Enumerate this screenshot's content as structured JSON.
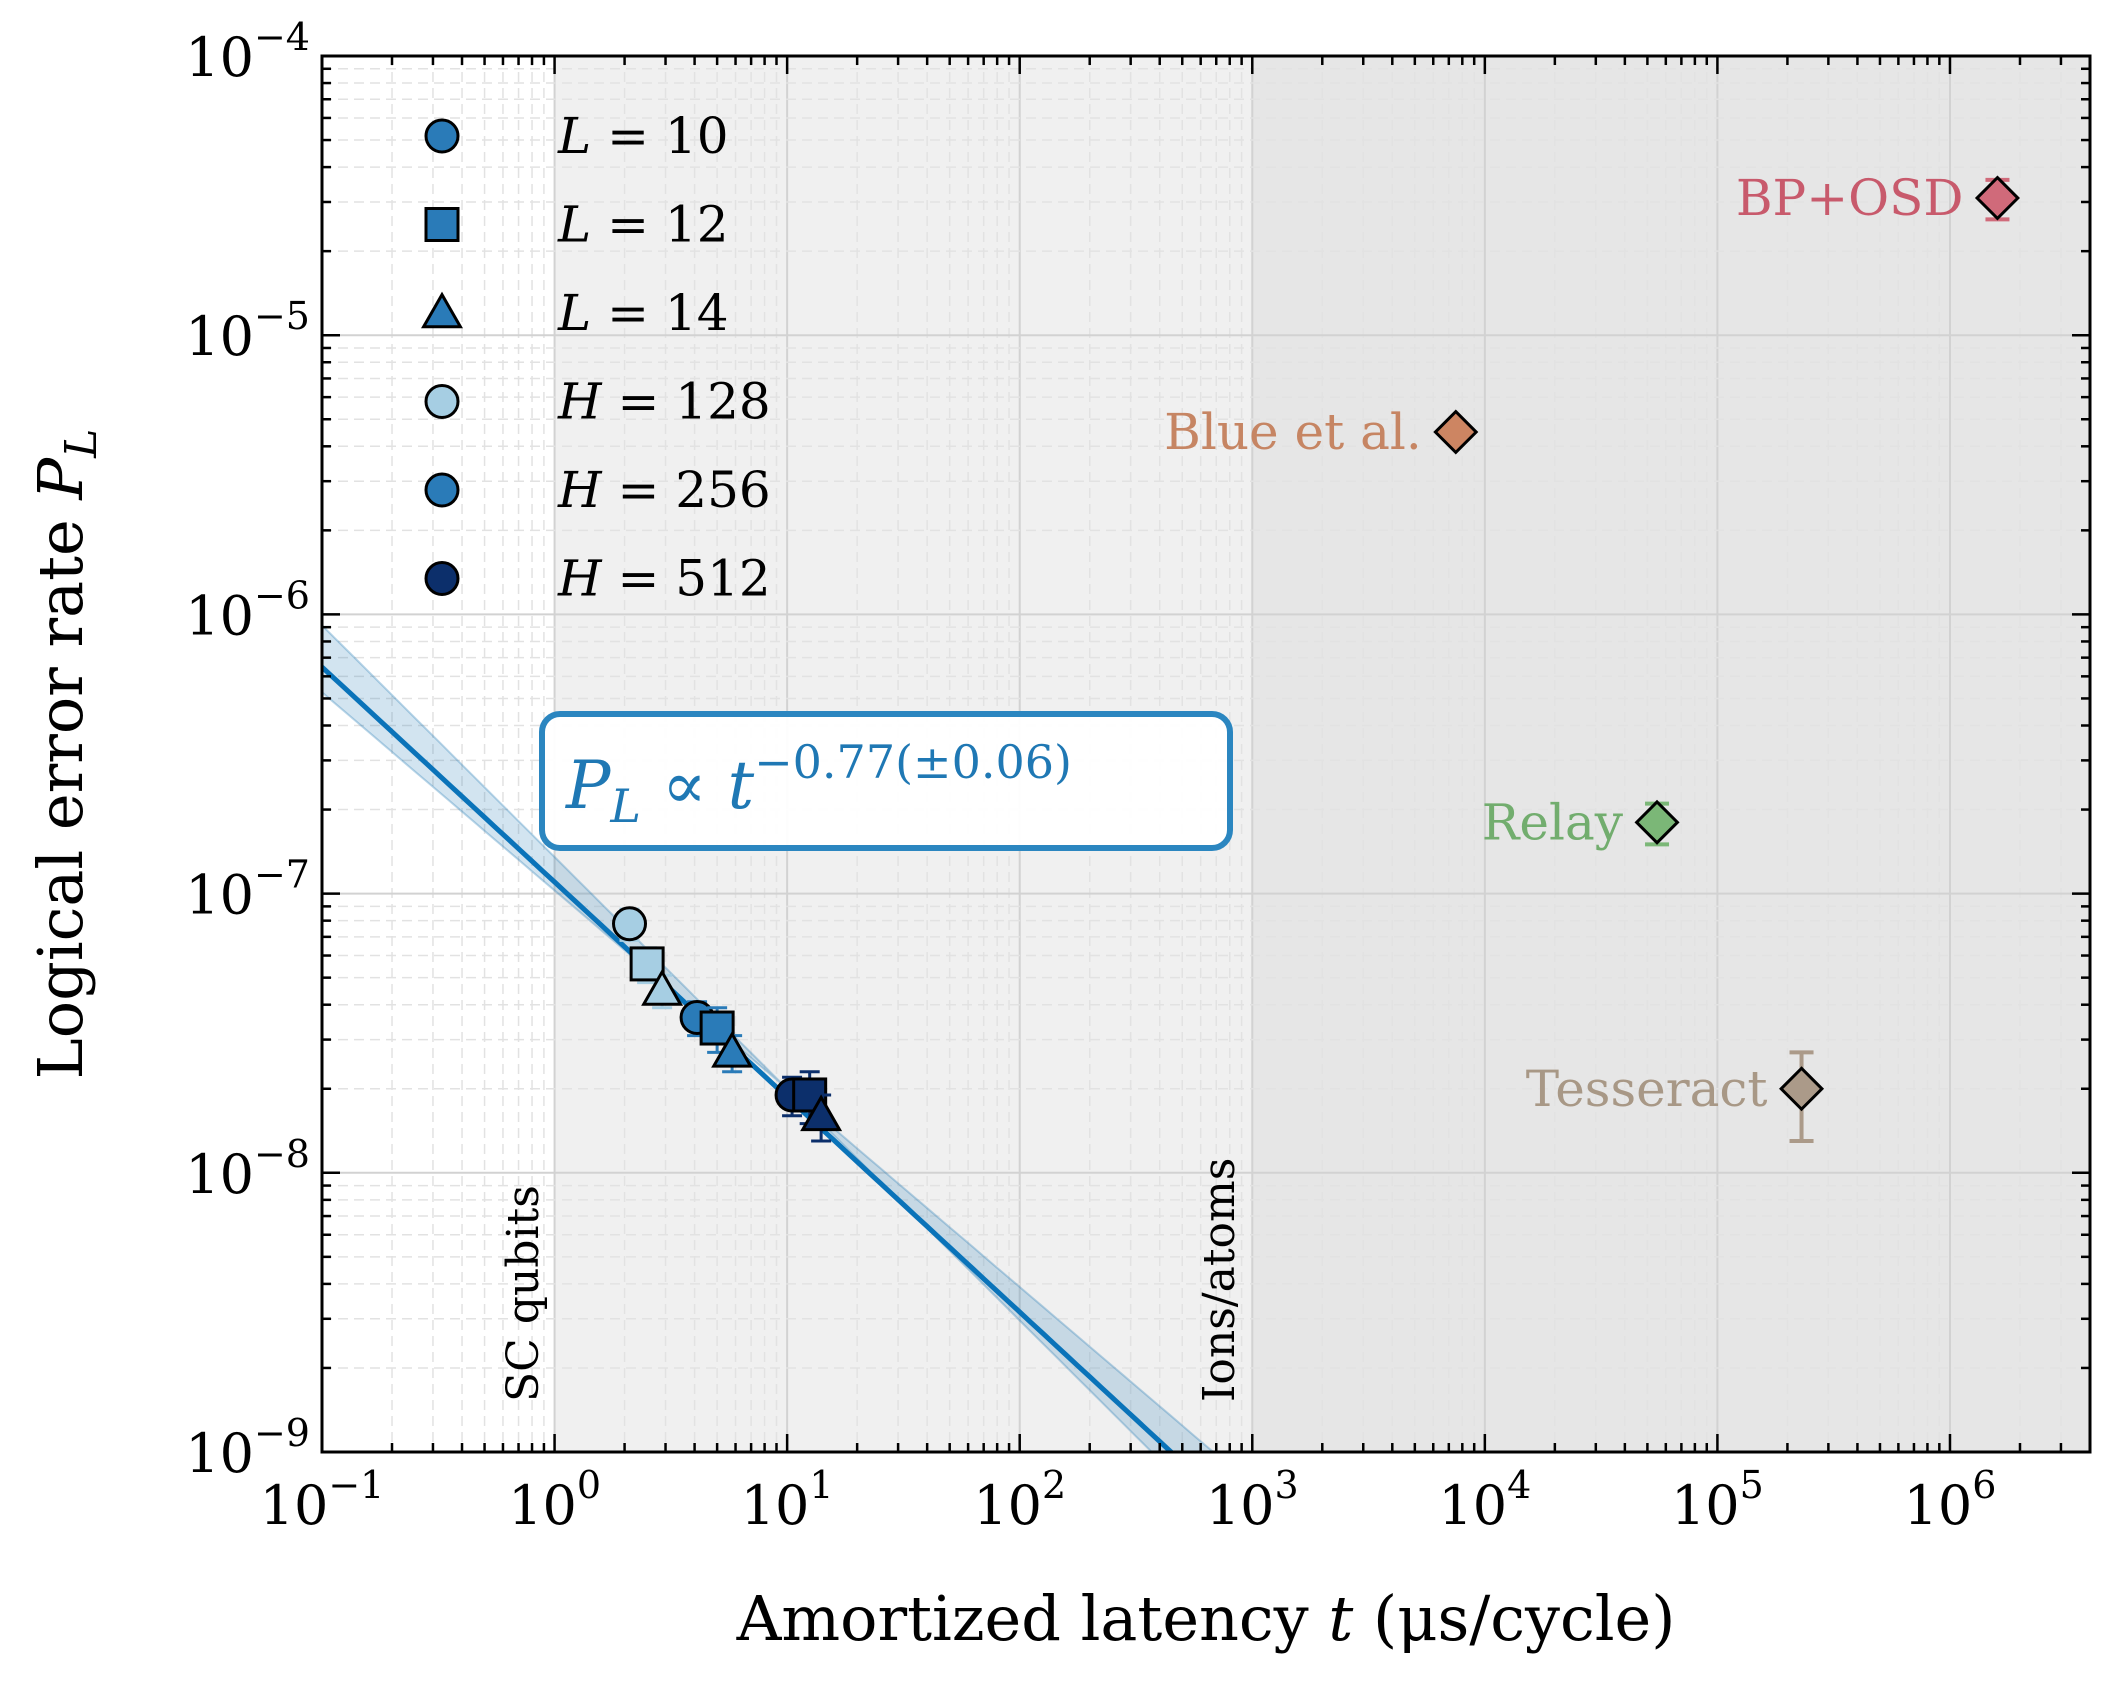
{
  "chart_data": {
    "type": "scatter",
    "xlabel_prefix": "Amortized latency ",
    "xlabel_var": "t",
    "xlabel_suffix": " (μs/cycle)",
    "ylabel_prefix": "Logical error rate ",
    "ylabel_var": "P",
    "ylabel_sub": "L",
    "x_scale": "log",
    "y_scale": "log",
    "xlim": [
      0.1,
      4000000
    ],
    "ylim": [
      1e-09,
      0.0001
    ],
    "x_ticks": [
      {
        "value": 0.1,
        "base": "10",
        "exp": "−1"
      },
      {
        "value": 1,
        "base": "10",
        "exp": "0"
      },
      {
        "value": 10,
        "base": "10",
        "exp": "1"
      },
      {
        "value": 100,
        "base": "10",
        "exp": "2"
      },
      {
        "value": 1000,
        "base": "10",
        "exp": "3"
      },
      {
        "value": 10000,
        "base": "10",
        "exp": "4"
      },
      {
        "value": 100000,
        "base": "10",
        "exp": "5"
      },
      {
        "value": 1000000,
        "base": "10",
        "exp": "6"
      }
    ],
    "y_ticks": [
      {
        "value": 1e-09,
        "base": "10",
        "exp": "−9"
      },
      {
        "value": 1e-08,
        "base": "10",
        "exp": "−8"
      },
      {
        "value": 1e-07,
        "base": "10",
        "exp": "−7"
      },
      {
        "value": 1e-06,
        "base": "10",
        "exp": "−6"
      },
      {
        "value": 1e-05,
        "base": "10",
        "exp": "−5"
      },
      {
        "value": 0.0001,
        "base": "10",
        "exp": "−4"
      }
    ],
    "grid": true,
    "regions": [
      {
        "x_from": 1,
        "x_to": 1000,
        "color": "#f0f0f0",
        "label": "SC qubits"
      },
      {
        "x_from": 1000,
        "x_to": 4000000,
        "color": "#e6e6e6",
        "label": "Ions/atoms"
      }
    ],
    "fit": {
      "slope": -0.77,
      "amplitude": 1.1e-07,
      "band_slope_low": -0.71,
      "band_slope_high": -0.83,
      "band_pivot_x": 10,
      "band_pivot_y": 2e-08,
      "color": "#1f78b4",
      "label_lhs": "P",
      "label_sub": "L",
      "label_rel": " ∝ ",
      "label_var": "t",
      "label_exp": "−0.77(±0.06)"
    },
    "legend": {
      "placement": "top-left",
      "entries": [
        {
          "var": "L",
          "text": " = 10",
          "marker": "circle",
          "color": "#2a7bb8"
        },
        {
          "var": "L",
          "text": " = 12",
          "marker": "square",
          "color": "#2a7bb8"
        },
        {
          "var": "L",
          "text": " = 14",
          "marker": "triangle",
          "color": "#2a7bb8"
        },
        {
          "var": "H",
          "text": " = 128",
          "marker": "circle",
          "color": "#a6cee3"
        },
        {
          "var": "H",
          "text": " = 256",
          "marker": "circle",
          "color": "#2a7bb8"
        },
        {
          "var": "H",
          "text": " = 512",
          "marker": "circle",
          "color": "#0c2f6b"
        }
      ]
    },
    "series": [
      {
        "marker": "circle",
        "color": "#a6cee3",
        "x": 2.1,
        "y": 7.8e-08,
        "yerr": [
          1e-08,
          1e-08
        ],
        "xerr": [
          0.15,
          0.15
        ]
      },
      {
        "marker": "square",
        "color": "#a6cee3",
        "x": 2.5,
        "y": 5.6e-08,
        "yerr": [
          8e-09,
          8e-09
        ],
        "xerr": [
          0.2,
          0.2
        ]
      },
      {
        "marker": "triangle",
        "color": "#a6cee3",
        "x": 2.9,
        "y": 4.5e-08,
        "yerr": [
          6e-09,
          6e-09
        ],
        "xerr": [
          0.2,
          0.2
        ]
      },
      {
        "marker": "circle",
        "color": "#2a7bb8",
        "x": 4.1,
        "y": 3.6e-08,
        "yerr": [
          5e-09,
          5e-09
        ],
        "xerr": [
          0.3,
          0.3
        ]
      },
      {
        "marker": "square",
        "color": "#2a7bb8",
        "x": 5.0,
        "y": 3.3e-08,
        "yerr": [
          6e-09,
          6e-09
        ],
        "xerr": [
          0.7,
          0.7
        ]
      },
      {
        "marker": "triangle",
        "color": "#2a7bb8",
        "x": 5.8,
        "y": 2.7e-08,
        "yerr": [
          4e-09,
          4e-09
        ],
        "xerr": [
          0.4,
          0.4
        ]
      },
      {
        "marker": "circle",
        "color": "#0c2f6b",
        "x": 10.5,
        "y": 1.9e-08,
        "yerr": [
          3e-09,
          3e-09
        ],
        "xerr": [
          1.0,
          1.0
        ]
      },
      {
        "marker": "square",
        "color": "#0c2f6b",
        "x": 12.5,
        "y": 1.9e-08,
        "yerr": [
          4e-09,
          4e-09
        ],
        "xerr": [
          2.0,
          2.0
        ]
      },
      {
        "marker": "triangle",
        "color": "#0c2f6b",
        "x": 14.0,
        "y": 1.6e-08,
        "yerr": [
          3e-09,
          3e-09
        ],
        "xerr": [
          1.5,
          1.5
        ]
      }
    ],
    "references": [
      {
        "label": "BP+OSD",
        "x": 1600000,
        "y": 3.1e-05,
        "yerr": [
          5e-06,
          5e-06
        ],
        "color": "#d06a7a",
        "text_color": "#c85a6c"
      },
      {
        "label": "Blue et al.",
        "x": 7500,
        "y": 4.5e-06,
        "yerr": [
          0,
          0
        ],
        "color": "#cd8562",
        "text_color": "#c68563"
      },
      {
        "label": "Relay",
        "x": 55000,
        "y": 1.8e-07,
        "yerr": [
          3e-08,
          3e-08
        ],
        "color": "#7bb777",
        "text_color": "#72ad6e"
      },
      {
        "label": "Tesseract",
        "x": 230000,
        "y": 2e-08,
        "yerr": [
          7e-09,
          7e-09
        ],
        "color": "#ab9a89",
        "text_color": "#a89886"
      }
    ]
  }
}
